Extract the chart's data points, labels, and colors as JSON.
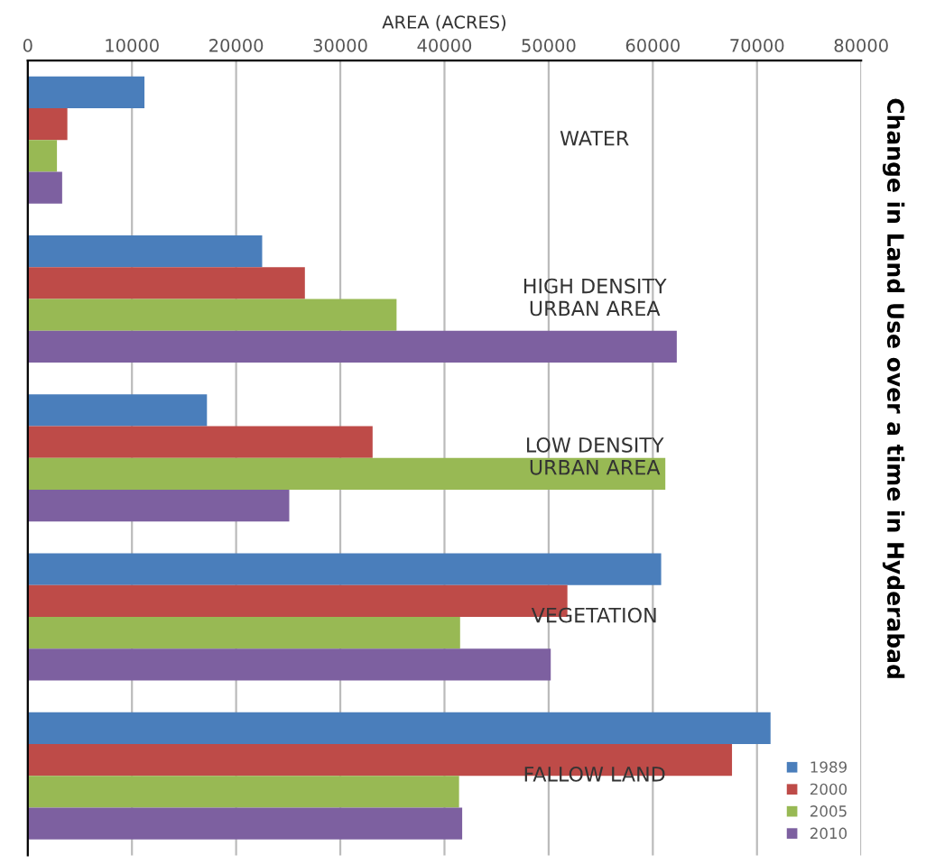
{
  "chart_data": {
    "type": "bar",
    "orientation": "horizontal",
    "title": "Change in Land Use over a time in Hyderabad",
    "xlabel": "AREA (ACRES)",
    "categories": [
      "WATER",
      "HIGH DENSITY\nURBAN AREA",
      "LOW DENSITY\nURBAN AREA",
      "VEGETATION",
      "FALLOW LAND"
    ],
    "series": [
      {
        "name": "1989",
        "color": "#4a7ebb",
        "values": [
          11200,
          22500,
          17200,
          60800,
          71300
        ]
      },
      {
        "name": "2000",
        "color": "#be4b48",
        "values": [
          3800,
          26600,
          33100,
          51800,
          67600
        ]
      },
      {
        "name": "2005",
        "color": "#98b954",
        "values": [
          2800,
          35400,
          61200,
          41500,
          41400
        ]
      },
      {
        "name": "2010",
        "color": "#7d60a0",
        "values": [
          3300,
          62300,
          25100,
          50200,
          41700
        ]
      }
    ],
    "xlim": [
      0,
      80000
    ],
    "xticks": [
      0,
      10000,
      20000,
      30000,
      40000,
      50000,
      60000,
      70000,
      80000
    ],
    "grid": "x",
    "legend": "bottom right"
  }
}
